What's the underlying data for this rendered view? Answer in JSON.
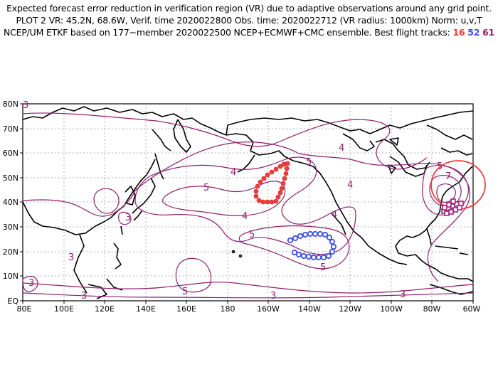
{
  "header": {
    "line1": "Expected forecast error reduction in verification region (VR) due to adaptive observations around any grid point.",
    "line2": "PLOT 2 VR: 45.2N, 68.6W, Verif. time 2020022800 Obs. time: 2020022712 (VR radius: 1000km) Norm: u,v,T",
    "line3_prefix": "NCEP/UM ETKF based on 177−member 2020022500 NCEP+ECMWF+CMC ensemble. Best flight tracks:",
    "tracks": [
      "16",
      "52",
      "61"
    ]
  },
  "map": {
    "lat_labels": [
      "80N",
      "70N",
      "60N",
      "50N",
      "40N",
      "30N",
      "20N",
      "10N",
      "EQ"
    ],
    "lon_labels": [
      "80E",
      "100E",
      "120E",
      "140E",
      "160E",
      "180",
      "160W",
      "140W",
      "120W",
      "100W",
      "80W",
      "60W"
    ],
    "contour_labels": [
      "3",
      "3",
      "3",
      "3",
      "3",
      "3",
      "3",
      "4",
      "4",
      "4",
      "4",
      "4",
      "5",
      "5",
      "5",
      "5",
      "5",
      "5",
      "6",
      "7"
    ],
    "colors": {
      "contour": "#8e1f6e",
      "track_16": "#f03c3c",
      "track_52": "#3c50f0",
      "track_61": "#a01e82",
      "verification_circle": "#f03c3c",
      "coastline": "#000000",
      "grid": "#9a9a9a"
    }
  }
}
